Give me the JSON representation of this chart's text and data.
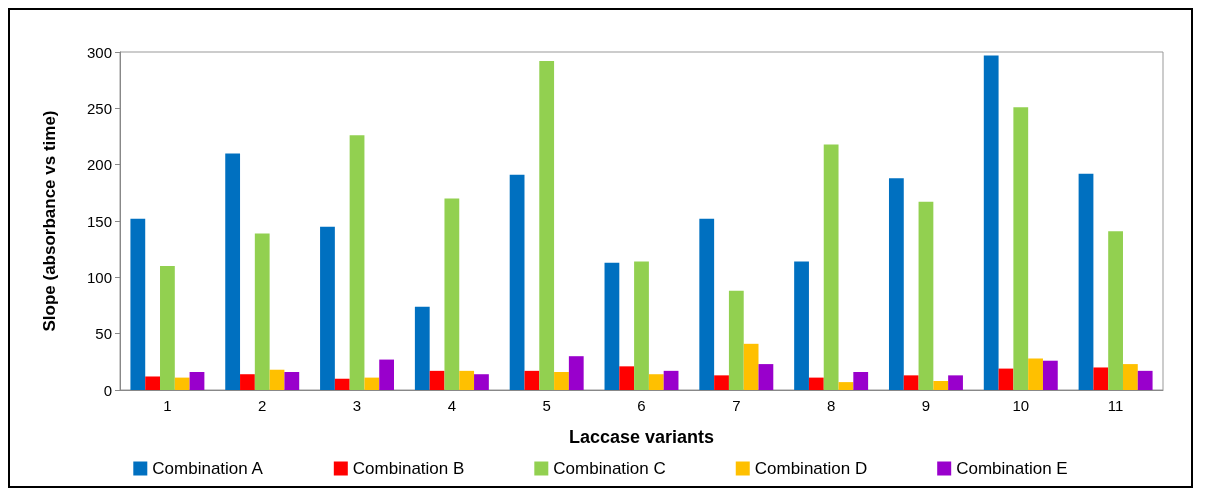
{
  "chart_data": {
    "type": "bar",
    "xlabel": "Laccase variants",
    "ylabel": "Slope (absorbance vs time)",
    "categories": [
      "1",
      "2",
      "3",
      "4",
      "5",
      "6",
      "7",
      "8",
      "9",
      "10",
      "11"
    ],
    "series": [
      {
        "name": "Combination A",
        "color": "#0070c0",
        "values": [
          152,
          210,
          145,
          74,
          191,
          113,
          152,
          114,
          188,
          297,
          192
        ]
      },
      {
        "name": "Combination B",
        "color": "#ff0000",
        "values": [
          12,
          14,
          10,
          17,
          17,
          21,
          13,
          11,
          13,
          19,
          20
        ]
      },
      {
        "name": "Combination C",
        "color": "#92d050",
        "values": [
          110,
          139,
          226,
          170,
          292,
          114,
          88,
          218,
          167,
          251,
          141
        ]
      },
      {
        "name": "Combination D",
        "color": "#ffc000",
        "values": [
          11,
          18,
          11,
          17,
          16,
          14,
          41,
          7,
          8,
          28,
          23
        ]
      },
      {
        "name": "Combination E",
        "color": "#9900cc",
        "values": [
          16,
          16,
          27,
          14,
          30,
          17,
          23,
          16,
          13,
          26,
          17
        ]
      }
    ],
    "ylim": [
      0,
      300
    ],
    "yticks": [
      0,
      50,
      100,
      150,
      200,
      250,
      300
    ],
    "grid": false,
    "legend": "bottom"
  }
}
